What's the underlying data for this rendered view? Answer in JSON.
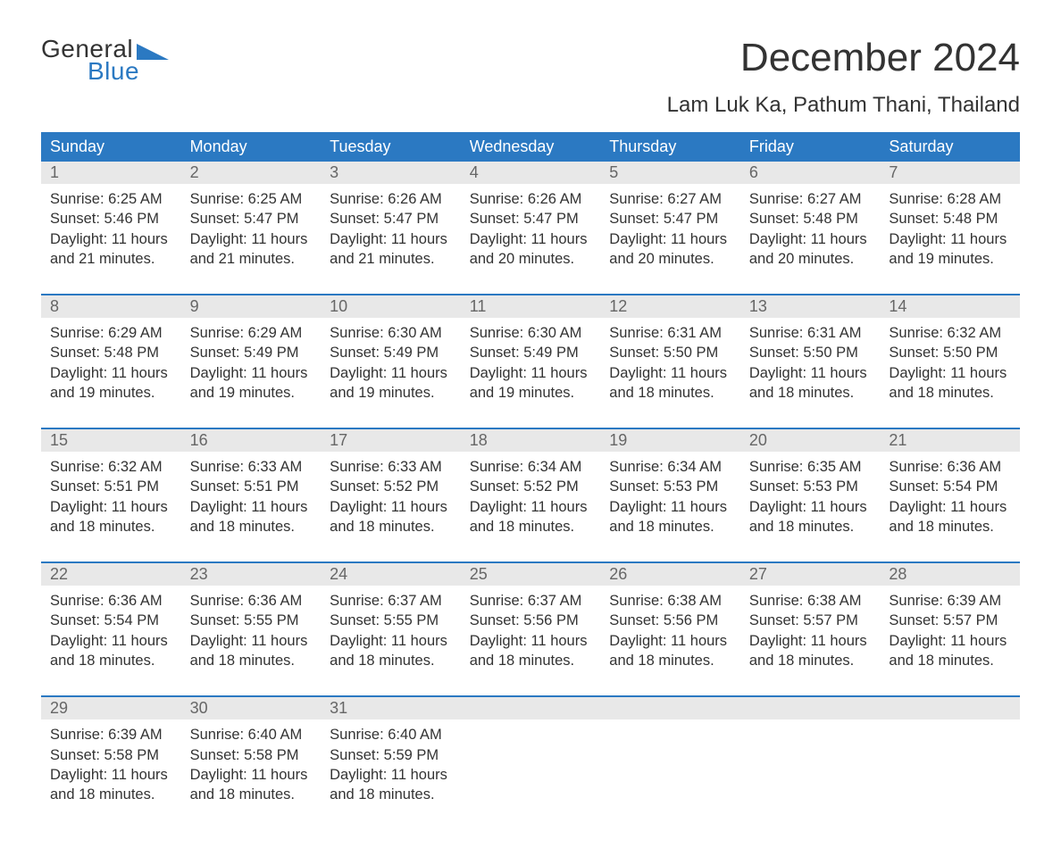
{
  "brand": {
    "word1": "General",
    "word2": "Blue"
  },
  "title": "December 2024",
  "location": "Lam Luk Ka, Pathum Thani, Thailand",
  "colors": {
    "header_bg": "#2b79c2",
    "header_text": "#ffffff",
    "daynum_bg": "#e8e8e8",
    "daynum_text": "#666666",
    "body_text": "#333333",
    "week_rule": "#2b79c2",
    "page_bg": "#ffffff",
    "logo_accent": "#2b79c2"
  },
  "fonts": {
    "title_pt": 44,
    "location_pt": 24,
    "dayhead_pt": 18,
    "daynum_pt": 18,
    "cell_pt": 16.5,
    "logo_pt": 28
  },
  "day_labels": [
    "Sunday",
    "Monday",
    "Tuesday",
    "Wednesday",
    "Thursday",
    "Friday",
    "Saturday"
  ],
  "weeks": [
    {
      "nums": [
        "1",
        "2",
        "3",
        "4",
        "5",
        "6",
        "7"
      ],
      "days": [
        {
          "sunrise": "6:25 AM",
          "sunset": "5:46 PM",
          "daylight": "11 hours and 21 minutes."
        },
        {
          "sunrise": "6:25 AM",
          "sunset": "5:47 PM",
          "daylight": "11 hours and 21 minutes."
        },
        {
          "sunrise": "6:26 AM",
          "sunset": "5:47 PM",
          "daylight": "11 hours and 21 minutes."
        },
        {
          "sunrise": "6:26 AM",
          "sunset": "5:47 PM",
          "daylight": "11 hours and 20 minutes."
        },
        {
          "sunrise": "6:27 AM",
          "sunset": "5:47 PM",
          "daylight": "11 hours and 20 minutes."
        },
        {
          "sunrise": "6:27 AM",
          "sunset": "5:48 PM",
          "daylight": "11 hours and 20 minutes."
        },
        {
          "sunrise": "6:28 AM",
          "sunset": "5:48 PM",
          "daylight": "11 hours and 19 minutes."
        }
      ]
    },
    {
      "nums": [
        "8",
        "9",
        "10",
        "11",
        "12",
        "13",
        "14"
      ],
      "days": [
        {
          "sunrise": "6:29 AM",
          "sunset": "5:48 PM",
          "daylight": "11 hours and 19 minutes."
        },
        {
          "sunrise": "6:29 AM",
          "sunset": "5:49 PM",
          "daylight": "11 hours and 19 minutes."
        },
        {
          "sunrise": "6:30 AM",
          "sunset": "5:49 PM",
          "daylight": "11 hours and 19 minutes."
        },
        {
          "sunrise": "6:30 AM",
          "sunset": "5:49 PM",
          "daylight": "11 hours and 19 minutes."
        },
        {
          "sunrise": "6:31 AM",
          "sunset": "5:50 PM",
          "daylight": "11 hours and 18 minutes."
        },
        {
          "sunrise": "6:31 AM",
          "sunset": "5:50 PM",
          "daylight": "11 hours and 18 minutes."
        },
        {
          "sunrise": "6:32 AM",
          "sunset": "5:50 PM",
          "daylight": "11 hours and 18 minutes."
        }
      ]
    },
    {
      "nums": [
        "15",
        "16",
        "17",
        "18",
        "19",
        "20",
        "21"
      ],
      "days": [
        {
          "sunrise": "6:32 AM",
          "sunset": "5:51 PM",
          "daylight": "11 hours and 18 minutes."
        },
        {
          "sunrise": "6:33 AM",
          "sunset": "5:51 PM",
          "daylight": "11 hours and 18 minutes."
        },
        {
          "sunrise": "6:33 AM",
          "sunset": "5:52 PM",
          "daylight": "11 hours and 18 minutes."
        },
        {
          "sunrise": "6:34 AM",
          "sunset": "5:52 PM",
          "daylight": "11 hours and 18 minutes."
        },
        {
          "sunrise": "6:34 AM",
          "sunset": "5:53 PM",
          "daylight": "11 hours and 18 minutes."
        },
        {
          "sunrise": "6:35 AM",
          "sunset": "5:53 PM",
          "daylight": "11 hours and 18 minutes."
        },
        {
          "sunrise": "6:36 AM",
          "sunset": "5:54 PM",
          "daylight": "11 hours and 18 minutes."
        }
      ]
    },
    {
      "nums": [
        "22",
        "23",
        "24",
        "25",
        "26",
        "27",
        "28"
      ],
      "days": [
        {
          "sunrise": "6:36 AM",
          "sunset": "5:54 PM",
          "daylight": "11 hours and 18 minutes."
        },
        {
          "sunrise": "6:36 AM",
          "sunset": "5:55 PM",
          "daylight": "11 hours and 18 minutes."
        },
        {
          "sunrise": "6:37 AM",
          "sunset": "5:55 PM",
          "daylight": "11 hours and 18 minutes."
        },
        {
          "sunrise": "6:37 AM",
          "sunset": "5:56 PM",
          "daylight": "11 hours and 18 minutes."
        },
        {
          "sunrise": "6:38 AM",
          "sunset": "5:56 PM",
          "daylight": "11 hours and 18 minutes."
        },
        {
          "sunrise": "6:38 AM",
          "sunset": "5:57 PM",
          "daylight": "11 hours and 18 minutes."
        },
        {
          "sunrise": "6:39 AM",
          "sunset": "5:57 PM",
          "daylight": "11 hours and 18 minutes."
        }
      ]
    },
    {
      "nums": [
        "29",
        "30",
        "31",
        "",
        "",
        "",
        ""
      ],
      "days": [
        {
          "sunrise": "6:39 AM",
          "sunset": "5:58 PM",
          "daylight": "11 hours and 18 minutes."
        },
        {
          "sunrise": "6:40 AM",
          "sunset": "5:58 PM",
          "daylight": "11 hours and 18 minutes."
        },
        {
          "sunrise": "6:40 AM",
          "sunset": "5:59 PM",
          "daylight": "11 hours and 18 minutes."
        },
        null,
        null,
        null,
        null
      ]
    }
  ],
  "labels": {
    "sunrise": "Sunrise: ",
    "sunset": "Sunset: ",
    "daylight": "Daylight: "
  }
}
